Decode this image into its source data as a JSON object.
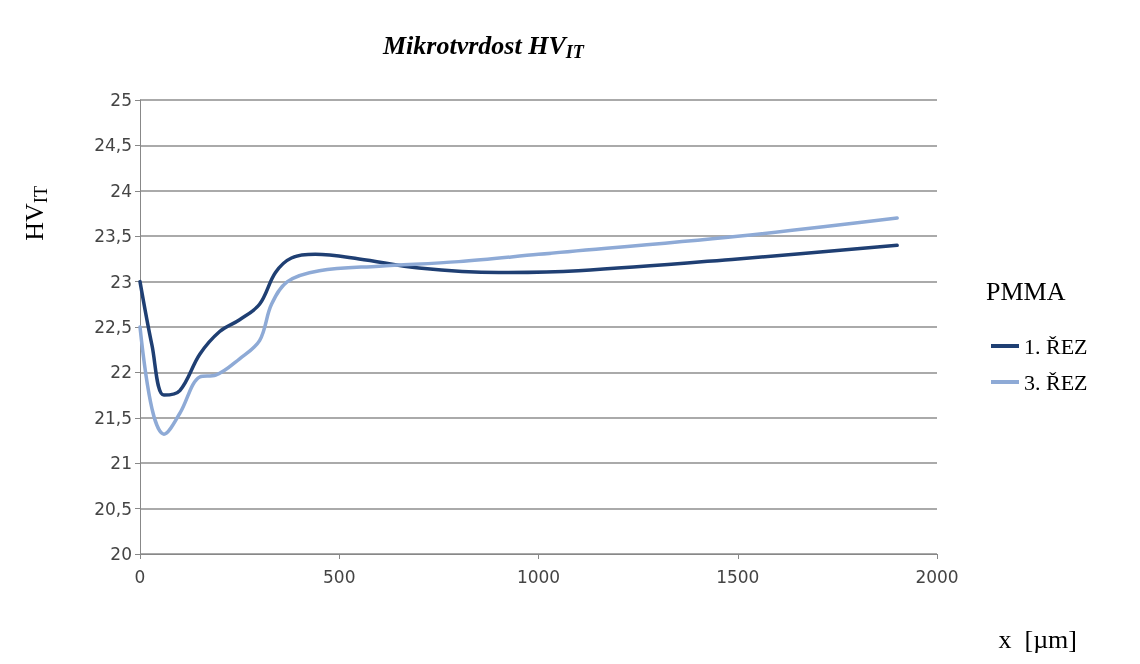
{
  "chart_data": {
    "type": "line",
    "title": "Mikrotvrdost HV$_{IT}$",
    "xlabel": "x  [µm]",
    "ylabel": "HV$_{IT}$",
    "legend_title": "PMMA",
    "legend": "right",
    "grid": "y",
    "marker": "none",
    "line_style": "solid",
    "xlim": [
      0,
      2000
    ],
    "xticks": [
      0,
      500,
      1000,
      1500,
      2000
    ],
    "ylim": [
      20,
      25
    ],
    "yticks": [
      20,
      {
        "value": 20.5,
        "label": "20,5"
      },
      21,
      {
        "value": 21.5,
        "label": "21,5"
      },
      22,
      {
        "value": 22.5,
        "label": "22,5"
      },
      23,
      {
        "value": 23.5,
        "label": "23,5"
      },
      24,
      {
        "value": 24.5,
        "label": "24,5"
      },
      25
    ],
    "series": [
      {
        "name": "1. ŘEZ",
        "color": "#1f3f73",
        "x": [
          0,
          30,
          60,
          100,
          150,
          200,
          250,
          300,
          340,
          380,
          440,
          550,
          700,
          900,
          1100,
          1500,
          1900
        ],
        "values": [
          23.0,
          22.3,
          21.75,
          21.8,
          22.2,
          22.45,
          22.58,
          22.75,
          23.1,
          23.26,
          23.3,
          23.25,
          23.15,
          23.1,
          23.12,
          23.25,
          23.4
        ]
      },
      {
        "name": "3. ŘEZ",
        "color": "#8eaad6",
        "x": [
          0,
          30,
          60,
          100,
          150,
          190,
          250,
          300,
          330,
          370,
          450,
          600,
          800,
          1000,
          1500,
          1900
        ],
        "values": [
          22.5,
          21.6,
          21.32,
          21.55,
          21.95,
          21.97,
          22.15,
          22.35,
          22.75,
          23.0,
          23.12,
          23.17,
          23.22,
          23.3,
          23.5,
          23.7
        ]
      }
    ]
  }
}
